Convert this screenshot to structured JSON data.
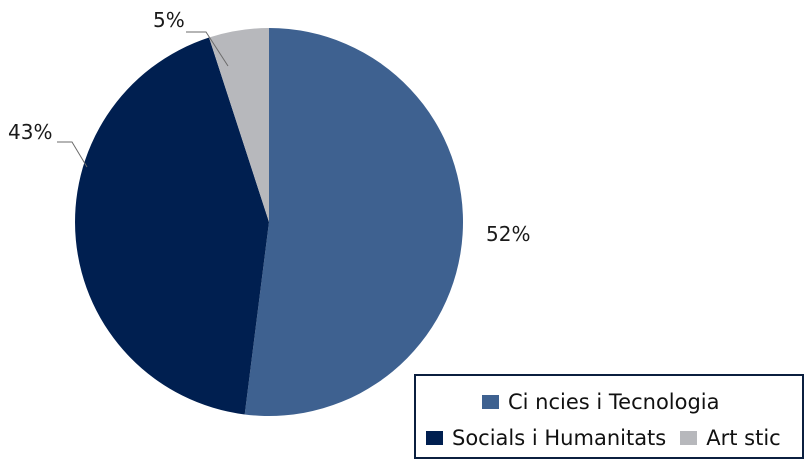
{
  "chart_data": {
    "type": "pie",
    "title": "",
    "slices": [
      {
        "label": "Ci ncies i Tecnologia",
        "value": 52,
        "display": "52%",
        "color": "#3e6190"
      },
      {
        "label": "Socials i Humanitats",
        "value": 43,
        "display": "43%",
        "color": "#001f50"
      },
      {
        "label": "Art stic",
        "value": 5,
        "display": "5%",
        "color": "#b7b8bc"
      }
    ],
    "start_angle": "12 o'clock",
    "direction": "clockwise",
    "legend": {
      "placement": "bottom-right"
    }
  }
}
